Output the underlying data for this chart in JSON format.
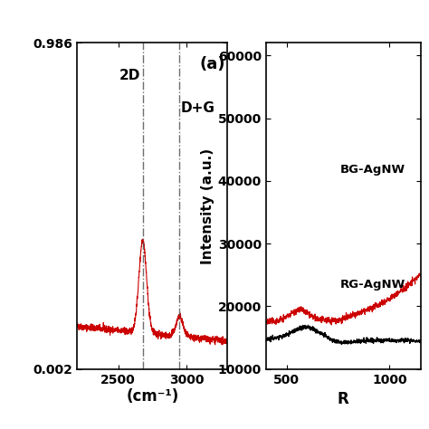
{
  "fig_width": 4.74,
  "fig_height": 4.74,
  "dpi": 100,
  "bg_color": "#ffffff",
  "left_panel": {
    "label": "(a)",
    "xlabel": "(cm⁻¹)",
    "xlim": [
      2200,
      3300
    ],
    "ylim": [
      0.05,
      0.55
    ],
    "xticks": [
      2500,
      3000
    ],
    "yticks": [
      0.002,
      0.986
    ],
    "line_color": "#cc0000",
    "peak_2D_x": 2680,
    "peak_DG_x": 2950,
    "annotation_2D": "2D",
    "annotation_DG": "D+G",
    "dashed_line_color": "#555555"
  },
  "right_panel": {
    "ylabel": "Intensity (a.u.)",
    "xlabel": "R",
    "xlim": [
      400,
      1150
    ],
    "ylim": [
      10000,
      62000
    ],
    "yticks": [
      10000,
      20000,
      30000,
      40000,
      50000,
      60000
    ],
    "xticks": [
      500,
      1000
    ],
    "line_color_BG": "#cc0000",
    "line_color_RG": "#000000",
    "label_BG": "BG-AgNW",
    "label_RG": "RG-AgNW"
  }
}
